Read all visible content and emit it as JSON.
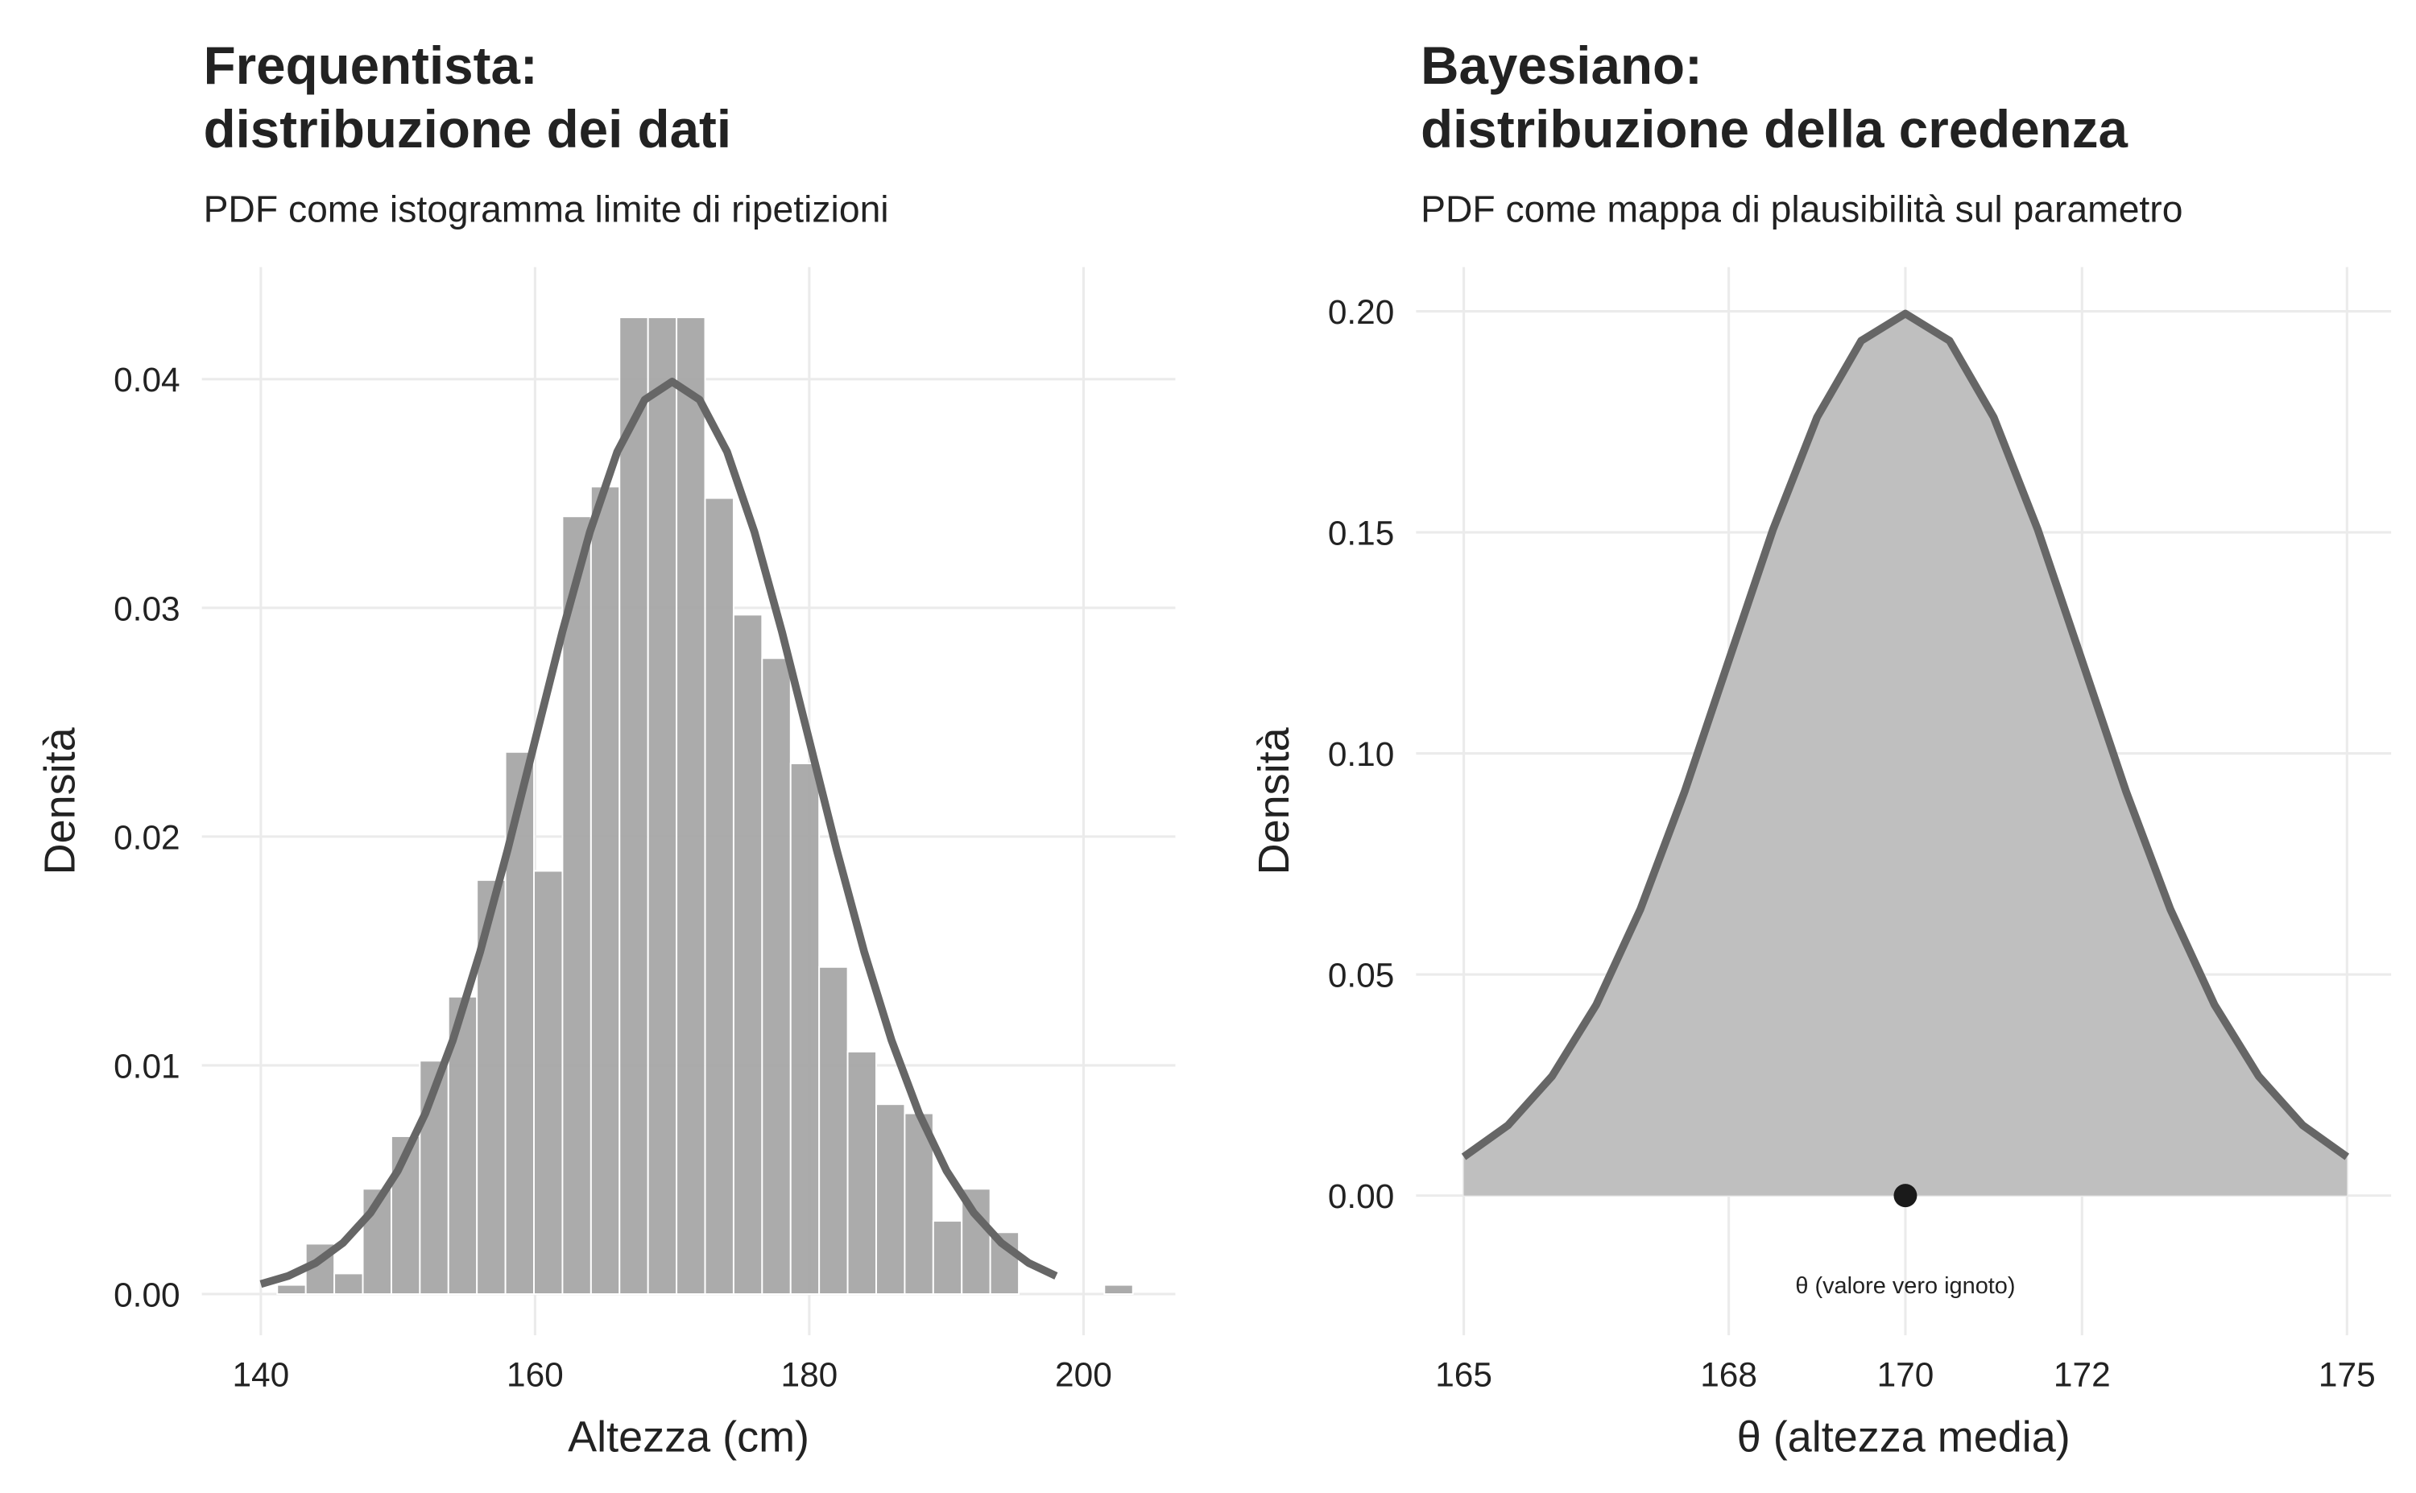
{
  "chart_data": [
    {
      "type": "histogram",
      "title": [
        "Frequentista:",
        "distribuzione dei dati"
      ],
      "subtitle": "PDF come istogramma limite di ripetizioni",
      "x_label": "Altezza (cm)",
      "y_label": "Densità",
      "bins": [
        141.2,
        143.28,
        145.36,
        147.44,
        149.52,
        151.6,
        153.68,
        155.76,
        157.84,
        159.92,
        162,
        164.08,
        166.16,
        168.24,
        170.32,
        172.4,
        174.48,
        176.56,
        178.64,
        180.72,
        182.8,
        184.88,
        186.96,
        189.04,
        191.12,
        193.2,
        195.28,
        197.36,
        199.44,
        201.52,
        203.6
      ],
      "values": [
        0.0004,
        0.0022,
        0.0009,
        0.0046,
        0.0069,
        0.0102,
        0.013,
        0.0181,
        0.0237,
        0.0185,
        0.034,
        0.0353,
        0.0427,
        0.0427,
        0.0427,
        0.0348,
        0.0297,
        0.0278,
        0.0232,
        0.0143,
        0.0106,
        0.0083,
        0.0079,
        0.0032,
        0.0046,
        0.0027,
        0,
        0,
        0,
        0.0004
      ],
      "color": "#a6a6a6",
      "curve": {
        "color": "#666666",
        "x": [
          140,
          142,
          144,
          146,
          148,
          150,
          152,
          154,
          156,
          158,
          160,
          162,
          164,
          166,
          168,
          170,
          172,
          174,
          176,
          178,
          180,
          182,
          184,
          186,
          188,
          190,
          192,
          194,
          196,
          198
        ],
        "values": [
          0.00044,
          0.00079,
          0.00136,
          0.00224,
          0.00355,
          0.0054,
          0.0079,
          0.01109,
          0.01497,
          0.01942,
          0.0242,
          0.02897,
          0.03332,
          0.03683,
          0.0391,
          0.03989,
          0.0391,
          0.03683,
          0.03332,
          0.02897,
          0.0242,
          0.01942,
          0.01497,
          0.01109,
          0.0079,
          0.0054,
          0.00355,
          0.00224,
          0.00136,
          0.00079
        ]
      },
      "xlim": [
        135.7,
        206.7
      ],
      "ylim": [
        -0.0018,
        0.0449
      ],
      "xticks": [
        140,
        160,
        180,
        200
      ],
      "yticks": [
        {
          "value": 0,
          "label": "0.00"
        },
        {
          "value": 0.01,
          "label": "0.01"
        },
        {
          "value": 0.02,
          "label": "0.02"
        },
        {
          "value": 0.03,
          "label": "0.03"
        },
        {
          "value": 0.04,
          "label": "0.04"
        }
      ],
      "grid": true
    },
    {
      "type": "area",
      "title": [
        "Bayesiano:",
        "distribuzione della credenza"
      ],
      "subtitle": "PDF come mappa di plausibilità sul parametro",
      "x_label": "θ (altezza media)",
      "y_label": "Densità",
      "x": [
        165,
        165.5,
        166,
        166.5,
        167,
        167.5,
        168,
        168.5,
        169,
        169.5,
        170,
        170.5,
        171,
        171.5,
        172,
        172.5,
        173,
        173.5,
        174,
        174.5,
        175
      ],
      "values": [
        0.00876,
        0.01587,
        0.027,
        0.04314,
        0.06476,
        0.09132,
        0.12099,
        0.15057,
        0.17603,
        0.19333,
        0.19947,
        0.19333,
        0.17603,
        0.15057,
        0.12099,
        0.09132,
        0.06476,
        0.04314,
        0.027,
        0.01587,
        0.00876
      ],
      "color": "#bfbfbf",
      "line_color": "#666666",
      "point": {
        "x": 170,
        "y": 0,
        "color": "#1a1a1a"
      },
      "annotation": {
        "text": "θ (valore vero ignoto)",
        "x": 170,
        "y": -0.0204
      },
      "xlim": [
        164.46,
        175.5
      ],
      "ylim": [
        -0.0316,
        0.21
      ],
      "xticks": [
        165,
        168,
        170,
        172,
        175
      ],
      "yticks": [
        {
          "value": 0,
          "label": "0.00"
        },
        {
          "value": 0.05,
          "label": "0.05"
        },
        {
          "value": 0.1,
          "label": "0.10"
        },
        {
          "value": 0.15,
          "label": "0.15"
        },
        {
          "value": 0.2,
          "label": "0.20"
        }
      ],
      "grid": true
    }
  ]
}
